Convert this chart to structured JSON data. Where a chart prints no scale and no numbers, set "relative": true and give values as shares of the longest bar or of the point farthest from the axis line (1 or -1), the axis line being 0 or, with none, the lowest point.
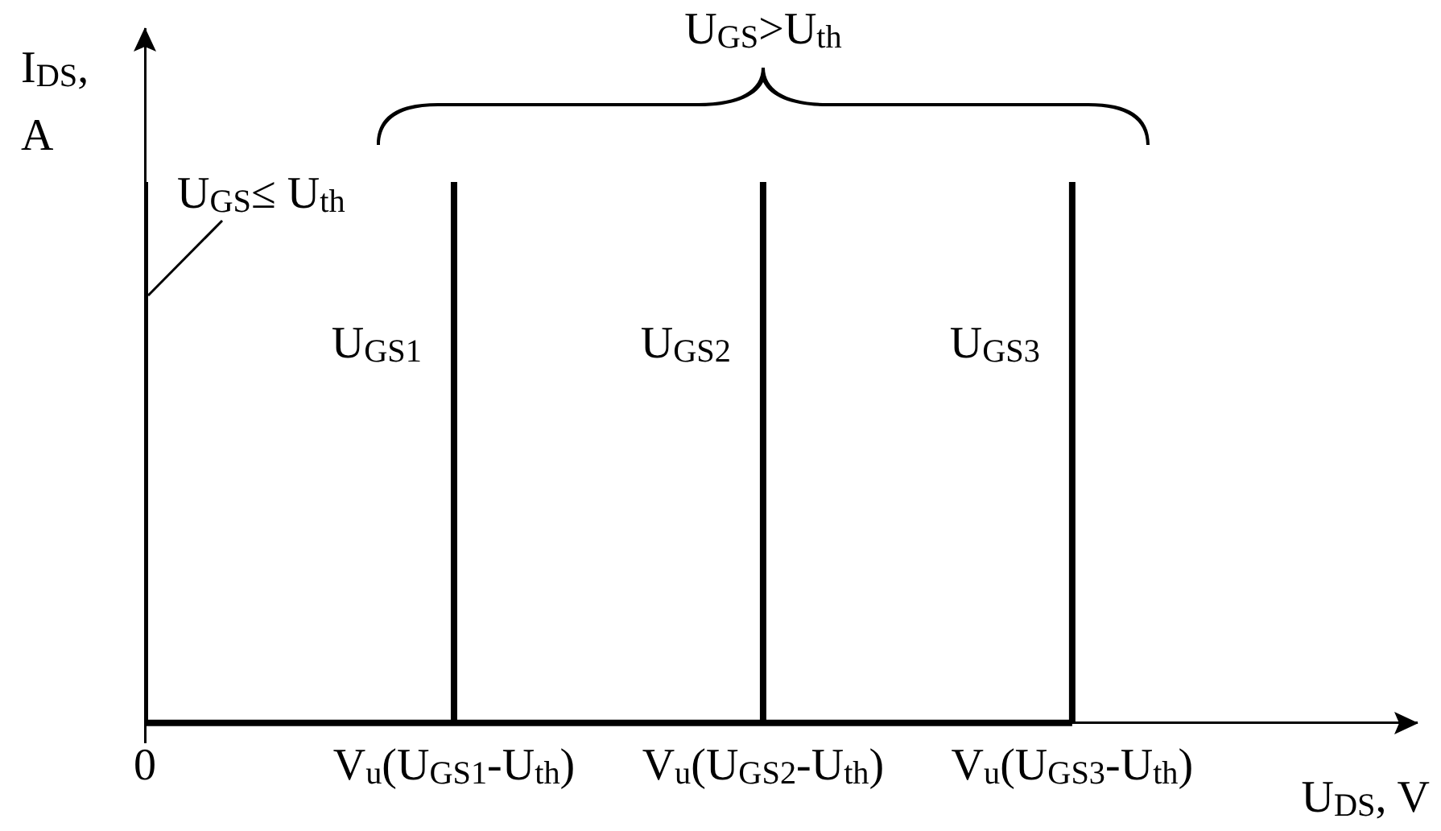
{
  "chart_data": {
    "type": "line",
    "relative": true,
    "xlabel": "U$_{DS}$, V",
    "ylabel": "I$_{DS}$, A",
    "annotations": [
      "U$_{GS}$>U$_{th}$"
    ],
    "categories": [
      "0",
      "V$_{u}$(U$_{GS1}$-U$_{th}$)",
      "V$_{u}$(U$_{GS2}$-U$_{th}$)",
      "V$_{u}$(U$_{GS3}$-U$_{th}$)"
    ],
    "series": [
      {
        "name": "U$_{GS}$≤ U$_{th}$",
        "color": "#000000",
        "x": [
          "0",
          "0"
        ],
        "values": [
          0,
          1
        ]
      },
      {
        "color": "#000000",
        "x": [
          "0",
          "V$_{u}$(U$_{GS3}$-U$_{th}$)"
        ],
        "values": [
          0,
          0
        ]
      },
      {
        "name": "U$_{GS1}$",
        "color": "#000000",
        "x": [
          "V$_{u}$(U$_{GS1}$-U$_{th}$)",
          "V$_{u}$(U$_{GS1}$-U$_{th}$)"
        ],
        "values": [
          0,
          1
        ]
      },
      {
        "name": "U$_{GS2}$",
        "color": "#000000",
        "x": [
          "V$_{u}$(U$_{GS2}$-U$_{th}$)",
          "V$_{u}$(U$_{GS2}$-U$_{th}$)"
        ],
        "values": [
          0,
          1
        ]
      },
      {
        "name": "U$_{GS3}$",
        "color": "#000000",
        "x": [
          "V$_{u}$(U$_{GS3}$-U$_{th}$)",
          "V$_{u}$(U$_{GS3}$-U$_{th}$)"
        ],
        "values": [
          0,
          1
        ]
      }
    ]
  }
}
